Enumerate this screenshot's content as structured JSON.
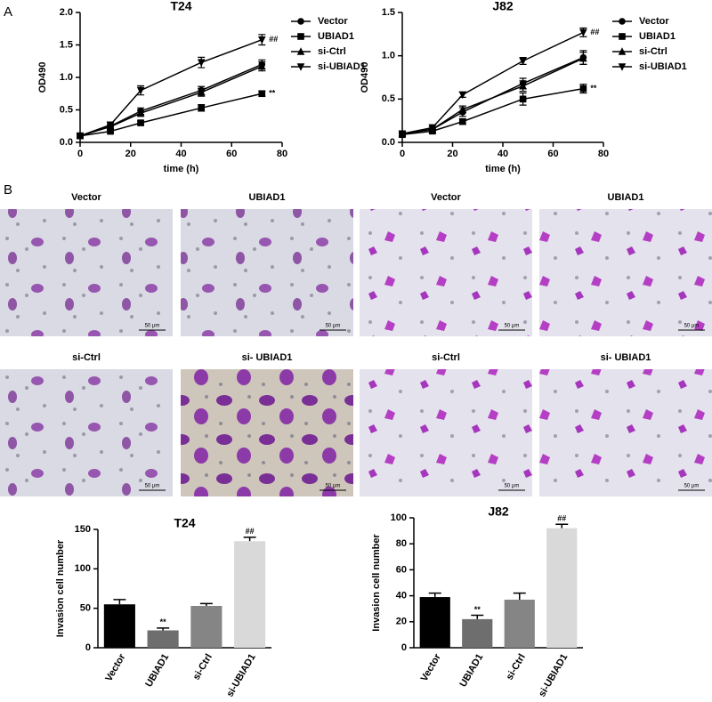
{
  "panel_labels": [
    "A",
    "B"
  ],
  "images": [
    {
      "title": "Vector",
      "scale_bar": "50 μm"
    },
    {
      "title": "UBIAD1",
      "scale_bar": "50 μm"
    },
    {
      "title": "Vector",
      "scale_bar": "50 μm"
    },
    {
      "title": "UBIAD1",
      "scale_bar": "50 μm"
    },
    {
      "title": "si-Ctrl",
      "scale_bar": "50 μm"
    },
    {
      "title": "si- UBIAD1",
      "scale_bar": "50 μm"
    },
    {
      "title": "si-Ctrl",
      "scale_bar": "50 μm"
    },
    {
      "title": "si- UBIAD1",
      "scale_bar": "50 μm"
    }
  ],
  "chart_data": [
    {
      "type": "line",
      "title": "T24",
      "x_label": "time (h)",
      "y_label": "OD490",
      "x": [
        0,
        12,
        24,
        48,
        72
      ],
      "xlim": [
        0,
        80
      ],
      "xticks": [
        0,
        20,
        40,
        60,
        80
      ],
      "ylim": [
        0,
        2
      ],
      "yticks": [
        {
          "value": 0,
          "label": "0.0"
        },
        0.5,
        {
          "value": 1,
          "label": "1.0"
        },
        1.5,
        {
          "value": 2,
          "label": "2.0"
        }
      ],
      "series": [
        {
          "name": "Vector",
          "color": "#000000",
          "marker": "circle",
          "values": [
            0.1,
            0.25,
            0.48,
            0.8,
            1.2
          ],
          "errors": [
            0.02,
            0.04,
            0.05,
            0.06,
            0.07
          ]
        },
        {
          "name": "UBIAD1",
          "color": "#000000",
          "marker": "square",
          "values": [
            0.1,
            0.17,
            0.3,
            0.53,
            0.75
          ],
          "errors": [
            0.02,
            0.02,
            0.03,
            0.05,
            0.04
          ],
          "annotation": "**"
        },
        {
          "name": "si-Ctrl",
          "color": "#000000",
          "marker": "triangle-up",
          "values": [
            0.1,
            0.24,
            0.45,
            0.77,
            1.17
          ],
          "errors": [
            0.02,
            0.03,
            0.05,
            0.06,
            0.07
          ]
        },
        {
          "name": "si-UBIAD1",
          "color": "#000000",
          "marker": "triangle-down",
          "values": [
            0.1,
            0.27,
            0.8,
            1.23,
            1.58
          ],
          "errors": [
            0.02,
            0.04,
            0.07,
            0.08,
            0.08
          ],
          "annotation": "##"
        }
      ]
    },
    {
      "type": "line",
      "title": "J82",
      "x_label": "time (h)",
      "y_label": "OD490",
      "x": [
        0,
        12,
        24,
        48,
        72
      ],
      "xlim": [
        0,
        80
      ],
      "xticks": [
        0,
        20,
        40,
        60,
        80
      ],
      "ylim": [
        0,
        1.5
      ],
      "yticks": [
        {
          "value": 0,
          "label": "0.0"
        },
        0.5,
        {
          "value": 1,
          "label": "1.0"
        },
        1.5
      ],
      "series": [
        {
          "name": "Vector",
          "color": "#000000",
          "marker": "circle",
          "values": [
            0.1,
            0.15,
            0.35,
            0.68,
            0.98
          ],
          "errors": [
            0.02,
            0.03,
            0.05,
            0.06,
            0.08
          ]
        },
        {
          "name": "UBIAD1",
          "color": "#000000",
          "marker": "square",
          "values": [
            0.09,
            0.13,
            0.24,
            0.5,
            0.62
          ],
          "errors": [
            0.02,
            0.02,
            0.03,
            0.07,
            0.05
          ],
          "annotation": "**"
        },
        {
          "name": "si-Ctrl",
          "color": "#000000",
          "marker": "triangle-up",
          "values": [
            0.1,
            0.15,
            0.38,
            0.65,
            0.97
          ],
          "errors": [
            0.02,
            0.03,
            0.04,
            0.06,
            0.07
          ]
        },
        {
          "name": "si-UBIAD1",
          "color": "#000000",
          "marker": "triangle-down",
          "values": [
            0.1,
            0.17,
            0.55,
            0.94,
            1.27
          ],
          "errors": [
            0.02,
            0.03,
            0.03,
            0.04,
            0.05
          ],
          "annotation": "##"
        }
      ]
    },
    {
      "type": "bar",
      "title": "T24",
      "y_label": "Invasion cell number",
      "categories": [
        "Vector",
        "UBIAD1",
        "si-Ctrl",
        "si-UBIAD1"
      ],
      "values": [
        55,
        22,
        53,
        135
      ],
      "errors": [
        6,
        3,
        3,
        5
      ],
      "colors": [
        "#000000",
        "#6e6e6e",
        "#858585",
        "#d9d9d9"
      ],
      "value_annotations": [
        null,
        "**",
        null,
        "##"
      ],
      "ylim": [
        0,
        150
      ],
      "yticks": [
        0,
        50,
        100,
        150
      ]
    },
    {
      "type": "bar",
      "title": "J82",
      "y_label": "Invasion cell number",
      "categories": [
        "Vector",
        "UBIAD1",
        "si-Ctrl",
        "si-UBIAD1"
      ],
      "values": [
        39,
        22,
        37,
        92
      ],
      "errors": [
        3,
        3,
        5,
        3
      ],
      "colors": [
        "#000000",
        "#6e6e6e",
        "#858585",
        "#d9d9d9"
      ],
      "value_annotations": [
        null,
        "**",
        null,
        "##"
      ],
      "ylim": [
        0,
        100
      ],
      "yticks": [
        0,
        20,
        40,
        60,
        80,
        100
      ]
    }
  ]
}
